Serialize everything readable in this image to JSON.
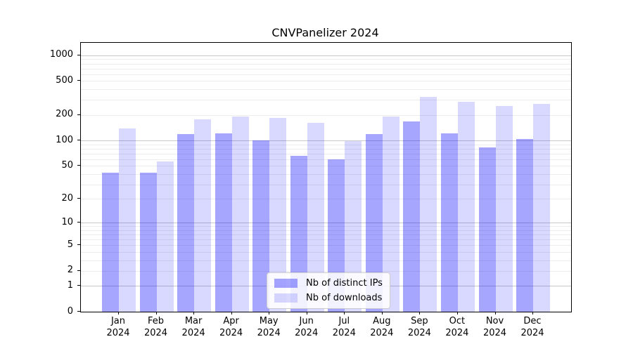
{
  "title": "CNVPanelizer 2024",
  "legend": {
    "items": [
      {
        "label": "Nb of distinct IPs"
      },
      {
        "label": "Nb of downloads"
      }
    ]
  },
  "colors": {
    "bar_distinct_ips": "rgba(0,0,255,0.35)",
    "bar_downloads": "rgba(0,0,255,0.15)",
    "grid_major": "#c9c9c9",
    "grid_minor": "#ededed",
    "axis": "#000000"
  },
  "chart_data": {
    "type": "bar",
    "title": "CNVPanelizer 2024",
    "categories": [
      "Jan 2024",
      "Feb 2024",
      "Mar 2024",
      "Apr 2024",
      "May 2024",
      "Jun 2024",
      "Jul 2024",
      "Aug 2024",
      "Sep 2024",
      "Oct 2024",
      "Nov 2024",
      "Dec 2024"
    ],
    "month_labels": [
      "Jan",
      "Feb",
      "Mar",
      "Apr",
      "May",
      "Jun",
      "Jul",
      "Aug",
      "Sep",
      "Oct",
      "Nov",
      "Dec"
    ],
    "year_label": "2024",
    "series": [
      {
        "name": "Nb of distinct IPs",
        "color": "rgba(0,0,255,0.35)",
        "values": [
          41,
          41,
          118,
          122,
          100,
          66,
          60,
          119,
          168,
          122,
          83,
          104
        ]
      },
      {
        "name": "Nb of downloads",
        "color": "rgba(0,0,255,0.15)",
        "values": [
          138,
          56,
          179,
          193,
          184,
          162,
          98,
          190,
          325,
          287,
          253,
          268
        ]
      }
    ],
    "xlabel": "",
    "ylabel": "",
    "yscale": "log1p",
    "y_ticks": [
      1000,
      500,
      200,
      100,
      50,
      20,
      10,
      5,
      2,
      1,
      0
    ],
    "ylim": [
      0,
      1400
    ],
    "grid": "both",
    "legend_position": "lower center"
  }
}
